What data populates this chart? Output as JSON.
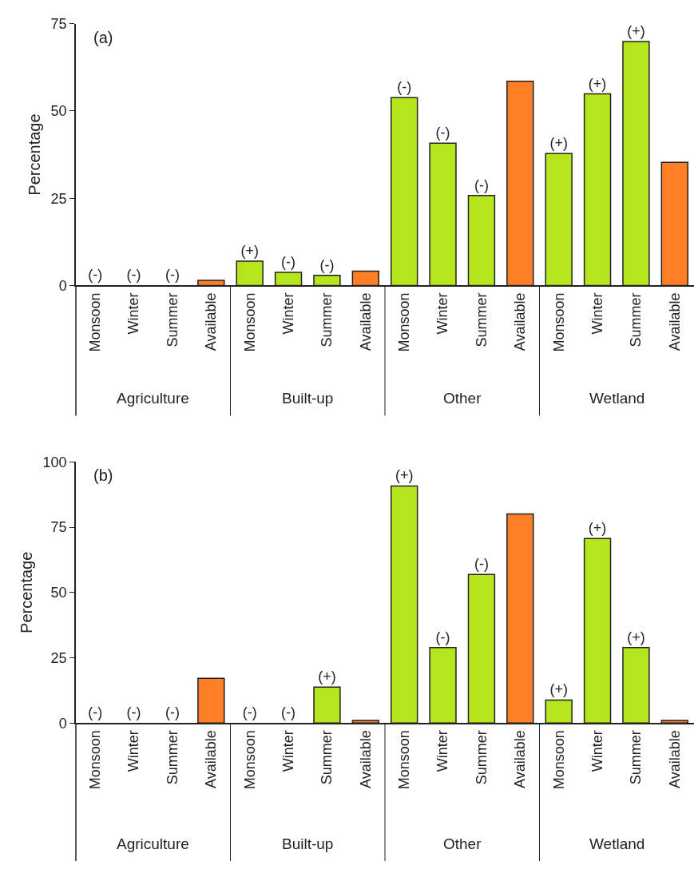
{
  "chart_data": [
    {
      "type": "bar",
      "title": "(a)",
      "ylabel": "Percentage",
      "categories": [
        "Monsoon",
        "Winter",
        "Summer",
        "Available",
        "Monsoon",
        "Winter",
        "Summer",
        "Available",
        "Monsoon",
        "Winter",
        "Summer",
        "Available",
        "Monsoon",
        "Winter",
        "Summer",
        "Available"
      ],
      "values": [
        0,
        0,
        0,
        1.5,
        7.0,
        3.8,
        2.9,
        4.1,
        53.8,
        40.8,
        25.8,
        58.5,
        37.8,
        54.9,
        69.9,
        35.3
      ],
      "colors": [
        "#b5e61d",
        "#b5e61d",
        "#b5e61d",
        "#ff7f27",
        "#b5e61d",
        "#b5e61d",
        "#b5e61d",
        "#ff7f27",
        "#b5e61d",
        "#b5e61d",
        "#b5e61d",
        "#ff7f27",
        "#b5e61d",
        "#b5e61d",
        "#b5e61d",
        "#ff7f27"
      ],
      "value_labels": [
        "(-)",
        "(-)",
        "(-)",
        null,
        "(+)",
        "(-)",
        "(-)",
        null,
        "(-)",
        "(-)",
        "(-)",
        null,
        "(+)",
        "(+)",
        "(+)",
        null
      ],
      "ylim": [
        0,
        75
      ],
      "yticks": [
        0,
        25,
        50,
        75
      ],
      "annotations": [
        "Agriculture",
        "Built-up",
        "Other",
        "Wetland"
      ]
    },
    {
      "type": "bar",
      "title": "(b)",
      "ylabel": "Percentage",
      "categories": [
        "Monsoon",
        "Winter",
        "Summer",
        "Available",
        "Monsoon",
        "Winter",
        "Summer",
        "Available",
        "Monsoon",
        "Winter",
        "Summer",
        "Available",
        "Monsoon",
        "Winter",
        "Summer",
        "Available"
      ],
      "values": [
        0,
        0,
        0,
        17.1,
        0,
        0,
        13.8,
        1.0,
        90.8,
        28.9,
        56.9,
        80.1,
        8.8,
        70.7,
        28.9,
        1.0
      ],
      "colors": [
        "#b5e61d",
        "#b5e61d",
        "#b5e61d",
        "#ff7f27",
        "#b5e61d",
        "#b5e61d",
        "#b5e61d",
        "#ff7f27",
        "#b5e61d",
        "#b5e61d",
        "#b5e61d",
        "#ff7f27",
        "#b5e61d",
        "#b5e61d",
        "#b5e61d",
        "#ff7f27"
      ],
      "value_labels": [
        "(-)",
        "(-)",
        "(-)",
        null,
        "(-)",
        "(-)",
        "(+)",
        null,
        "(+)",
        "(-)",
        "(-)",
        null,
        "(+)",
        "(+)",
        "(+)",
        null
      ],
      "ylim": [
        0,
        100
      ],
      "yticks": [
        0,
        25,
        50,
        75,
        100
      ],
      "annotations": [
        "Agriculture",
        "Built-up",
        "Other",
        "Wetland"
      ]
    }
  ]
}
